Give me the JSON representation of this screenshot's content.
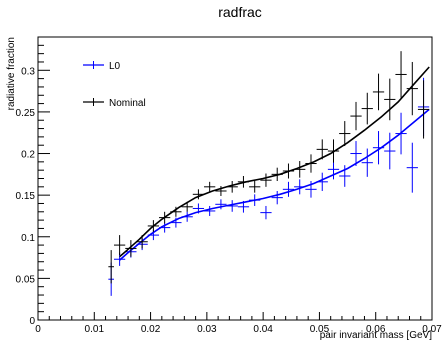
{
  "chart_data": {
    "type": "scatter",
    "title": "radfrac",
    "xlabel": "pair invariant mass [GeV]",
    "ylabel": "radiative fraction",
    "xlim": [
      0,
      0.07
    ],
    "ylim": [
      0,
      0.34
    ],
    "xticks": [
      "0",
      "0.01",
      "0.02",
      "0.03",
      "0.04",
      "0.05",
      "0.06",
      "0.07"
    ],
    "xtick_values": [
      0,
      0.01,
      0.02,
      0.03,
      0.04,
      0.05,
      0.06,
      0.07
    ],
    "yticks": [
      "0",
      "0.05",
      "0.1",
      "0.15",
      "0.2",
      "0.25",
      "0.3"
    ],
    "ytick_values": [
      0,
      0.05,
      0.1,
      0.15,
      0.2,
      0.25,
      0.3
    ],
    "legend_position": "top-left",
    "grid": false,
    "series": [
      {
        "name": "L0",
        "color": "#0000ff",
        "points": [
          {
            "x": 0.013,
            "y": 0.049,
            "yerr": 0.02,
            "xerr": 0.0005
          },
          {
            "x": 0.0145,
            "y": 0.073,
            "yerr": 0.008,
            "xerr": 0.001
          },
          {
            "x": 0.0165,
            "y": 0.082,
            "yerr": 0.007,
            "xerr": 0.001
          },
          {
            "x": 0.0185,
            "y": 0.091,
            "yerr": 0.007,
            "xerr": 0.001
          },
          {
            "x": 0.0205,
            "y": 0.102,
            "yerr": 0.006,
            "xerr": 0.001
          },
          {
            "x": 0.0225,
            "y": 0.111,
            "yerr": 0.006,
            "xerr": 0.001
          },
          {
            "x": 0.0245,
            "y": 0.117,
            "yerr": 0.006,
            "xerr": 0.001
          },
          {
            "x": 0.0265,
            "y": 0.124,
            "yerr": 0.006,
            "xerr": 0.001
          },
          {
            "x": 0.0285,
            "y": 0.134,
            "yerr": 0.006,
            "xerr": 0.001
          },
          {
            "x": 0.0305,
            "y": 0.131,
            "yerr": 0.006,
            "xerr": 0.001
          },
          {
            "x": 0.0325,
            "y": 0.139,
            "yerr": 0.006,
            "xerr": 0.001
          },
          {
            "x": 0.0345,
            "y": 0.137,
            "yerr": 0.007,
            "xerr": 0.001
          },
          {
            "x": 0.0365,
            "y": 0.136,
            "yerr": 0.007,
            "xerr": 0.001
          },
          {
            "x": 0.0385,
            "y": 0.144,
            "yerr": 0.007,
            "xerr": 0.001
          },
          {
            "x": 0.0405,
            "y": 0.129,
            "yerr": 0.008,
            "xerr": 0.001
          },
          {
            "x": 0.0425,
            "y": 0.147,
            "yerr": 0.008,
            "xerr": 0.001
          },
          {
            "x": 0.0445,
            "y": 0.157,
            "yerr": 0.009,
            "xerr": 0.001
          },
          {
            "x": 0.0465,
            "y": 0.16,
            "yerr": 0.009,
            "xerr": 0.001
          },
          {
            "x": 0.0485,
            "y": 0.157,
            "yerr": 0.01,
            "xerr": 0.001
          },
          {
            "x": 0.0505,
            "y": 0.166,
            "yerr": 0.011,
            "xerr": 0.001
          },
          {
            "x": 0.0525,
            "y": 0.181,
            "yerr": 0.012,
            "xerr": 0.001
          },
          {
            "x": 0.0545,
            "y": 0.173,
            "yerr": 0.013,
            "xerr": 0.001
          },
          {
            "x": 0.0565,
            "y": 0.2,
            "yerr": 0.015,
            "xerr": 0.001
          },
          {
            "x": 0.0585,
            "y": 0.189,
            "yerr": 0.017,
            "xerr": 0.001
          },
          {
            "x": 0.0605,
            "y": 0.207,
            "yerr": 0.02,
            "xerr": 0.001
          },
          {
            "x": 0.0625,
            "y": 0.203,
            "yerr": 0.022,
            "xerr": 0.001
          },
          {
            "x": 0.0645,
            "y": 0.224,
            "yerr": 0.025,
            "xerr": 0.001
          },
          {
            "x": 0.0665,
            "y": 0.183,
            "yerr": 0.03,
            "xerr": 0.001
          },
          {
            "x": 0.0685,
            "y": 0.256,
            "yerr": 0.035,
            "xerr": 0.001
          }
        ],
        "fit": [
          {
            "x": 0.0145,
            "y": 0.072
          },
          {
            "x": 0.016,
            "y": 0.081
          },
          {
            "x": 0.018,
            "y": 0.092
          },
          {
            "x": 0.02,
            "y": 0.103
          },
          {
            "x": 0.022,
            "y": 0.112
          },
          {
            "x": 0.025,
            "y": 0.122
          },
          {
            "x": 0.028,
            "y": 0.129
          },
          {
            "x": 0.031,
            "y": 0.134
          },
          {
            "x": 0.034,
            "y": 0.138
          },
          {
            "x": 0.037,
            "y": 0.142
          },
          {
            "x": 0.04,
            "y": 0.146
          },
          {
            "x": 0.043,
            "y": 0.151
          },
          {
            "x": 0.046,
            "y": 0.157
          },
          {
            "x": 0.049,
            "y": 0.164
          },
          {
            "x": 0.052,
            "y": 0.173
          },
          {
            "x": 0.055,
            "y": 0.182
          },
          {
            "x": 0.058,
            "y": 0.194
          },
          {
            "x": 0.061,
            "y": 0.207
          },
          {
            "x": 0.064,
            "y": 0.222
          },
          {
            "x": 0.067,
            "y": 0.239
          },
          {
            "x": 0.0695,
            "y": 0.253
          }
        ]
      },
      {
        "name": "Nominal",
        "color": "#000000",
        "points": [
          {
            "x": 0.013,
            "y": 0.064,
            "yerr": 0.02,
            "xerr": 0.0005
          },
          {
            "x": 0.0145,
            "y": 0.09,
            "yerr": 0.012,
            "xerr": 0.001
          },
          {
            "x": 0.0165,
            "y": 0.086,
            "yerr": 0.01,
            "xerr": 0.001
          },
          {
            "x": 0.0185,
            "y": 0.094,
            "yerr": 0.008,
            "xerr": 0.001
          },
          {
            "x": 0.0205,
            "y": 0.113,
            "yerr": 0.007,
            "xerr": 0.001
          },
          {
            "x": 0.0225,
            "y": 0.123,
            "yerr": 0.007,
            "xerr": 0.001
          },
          {
            "x": 0.0245,
            "y": 0.13,
            "yerr": 0.006,
            "xerr": 0.001
          },
          {
            "x": 0.0265,
            "y": 0.136,
            "yerr": 0.006,
            "xerr": 0.001
          },
          {
            "x": 0.0285,
            "y": 0.151,
            "yerr": 0.006,
            "xerr": 0.001
          },
          {
            "x": 0.0305,
            "y": 0.16,
            "yerr": 0.006,
            "xerr": 0.001
          },
          {
            "x": 0.0325,
            "y": 0.155,
            "yerr": 0.006,
            "xerr": 0.001
          },
          {
            "x": 0.0345,
            "y": 0.16,
            "yerr": 0.007,
            "xerr": 0.001
          },
          {
            "x": 0.0365,
            "y": 0.166,
            "yerr": 0.007,
            "xerr": 0.001
          },
          {
            "x": 0.0385,
            "y": 0.16,
            "yerr": 0.007,
            "xerr": 0.001
          },
          {
            "x": 0.0405,
            "y": 0.168,
            "yerr": 0.008,
            "xerr": 0.001
          },
          {
            "x": 0.0425,
            "y": 0.175,
            "yerr": 0.008,
            "xerr": 0.001
          },
          {
            "x": 0.0445,
            "y": 0.179,
            "yerr": 0.009,
            "xerr": 0.001
          },
          {
            "x": 0.0465,
            "y": 0.181,
            "yerr": 0.01,
            "xerr": 0.001
          },
          {
            "x": 0.0485,
            "y": 0.188,
            "yerr": 0.011,
            "xerr": 0.001
          },
          {
            "x": 0.0505,
            "y": 0.205,
            "yerr": 0.012,
            "xerr": 0.001
          },
          {
            "x": 0.0525,
            "y": 0.203,
            "yerr": 0.014,
            "xerr": 0.001
          },
          {
            "x": 0.0545,
            "y": 0.224,
            "yerr": 0.015,
            "xerr": 0.001
          },
          {
            "x": 0.0565,
            "y": 0.245,
            "yerr": 0.017,
            "xerr": 0.001
          },
          {
            "x": 0.0585,
            "y": 0.254,
            "yerr": 0.019,
            "xerr": 0.001
          },
          {
            "x": 0.0605,
            "y": 0.274,
            "yerr": 0.022,
            "xerr": 0.001
          },
          {
            "x": 0.0625,
            "y": 0.265,
            "yerr": 0.025,
            "xerr": 0.001
          },
          {
            "x": 0.0645,
            "y": 0.295,
            "yerr": 0.028,
            "xerr": 0.001
          },
          {
            "x": 0.0665,
            "y": 0.278,
            "yerr": 0.032,
            "xerr": 0.001
          },
          {
            "x": 0.0685,
            "y": 0.253,
            "yerr": 0.035,
            "xerr": 0.001
          }
        ],
        "fit": [
          {
            "x": 0.0145,
            "y": 0.076
          },
          {
            "x": 0.016,
            "y": 0.085
          },
          {
            "x": 0.018,
            "y": 0.097
          },
          {
            "x": 0.02,
            "y": 0.11
          },
          {
            "x": 0.022,
            "y": 0.121
          },
          {
            "x": 0.025,
            "y": 0.135
          },
          {
            "x": 0.028,
            "y": 0.147
          },
          {
            "x": 0.031,
            "y": 0.155
          },
          {
            "x": 0.034,
            "y": 0.161
          },
          {
            "x": 0.037,
            "y": 0.166
          },
          {
            "x": 0.04,
            "y": 0.17
          },
          {
            "x": 0.043,
            "y": 0.175
          },
          {
            "x": 0.046,
            "y": 0.182
          },
          {
            "x": 0.049,
            "y": 0.19
          },
          {
            "x": 0.052,
            "y": 0.2
          },
          {
            "x": 0.055,
            "y": 0.213
          },
          {
            "x": 0.058,
            "y": 0.228
          },
          {
            "x": 0.061,
            "y": 0.244
          },
          {
            "x": 0.064,
            "y": 0.262
          },
          {
            "x": 0.067,
            "y": 0.285
          },
          {
            "x": 0.0695,
            "y": 0.304
          }
        ]
      }
    ]
  }
}
